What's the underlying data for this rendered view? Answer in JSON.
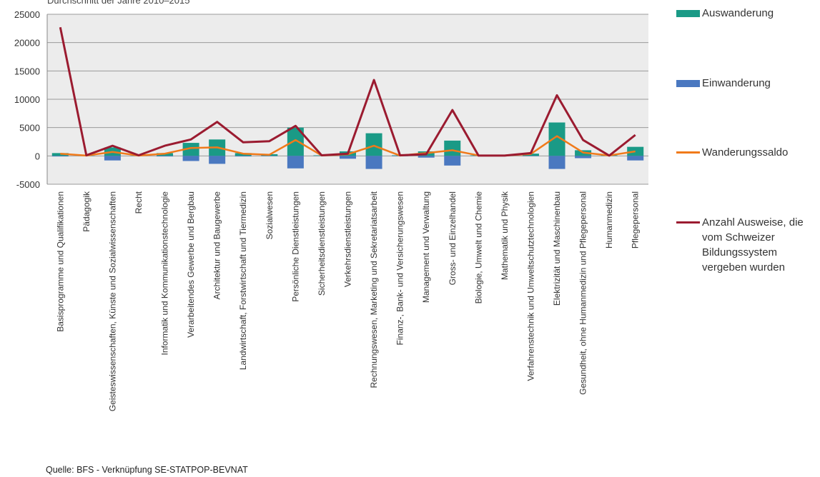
{
  "subtitle": "Durchschnitt der Jahre 2010–2015",
  "source": "Quelle: BFS - Verknüpfung SE-STATPOP-BEVNAT",
  "colors": {
    "auswanderung": "#1a9a86",
    "einwanderung": "#4a78c0",
    "wanderungssaldo": "#f07a1a",
    "ausweise": "#9b1b30",
    "plot_bg": "#ececec",
    "grid": "#9a9a9a"
  },
  "legend": [
    {
      "key": "auswanderung",
      "label": "Auswanderung",
      "kind": "box"
    },
    {
      "key": "einwanderung",
      "label": "Einwanderung",
      "kind": "box"
    },
    {
      "key": "wanderungssaldo",
      "label": "Wanderungssaldo",
      "kind": "line"
    },
    {
      "key": "ausweise",
      "label": "Anzahl Ausweise, die vom Schweizer Bildungssystem vergeben wurden",
      "kind": "line"
    }
  ],
  "chart_data": {
    "type": "bar",
    "ylim": [
      -5000,
      25000
    ],
    "yticks": [
      -5000,
      0,
      5000,
      10000,
      15000,
      20000,
      25000
    ],
    "grid": true,
    "legend_position": "right",
    "categories": [
      "Basisprogramme und Qualifikationen",
      "Pädagogik",
      "Geisteswissenschaften, Künste und Sozialwissenschaften",
      "Recht",
      "Informatik und Kommunikationstechnologie",
      "Verarbeitendes Gewerbe und Bergbau",
      "Architektur und Baugewerbe",
      "Landwirtschaft, Forstwirtschaft und Tiermedizin",
      "Sozialwesen",
      "Persönliche Dienstleistungen",
      "Sicherheitsdienstleistungen",
      "Verkehrsdienstleistungen",
      "Rechnungswesen, Marketing und Sekretariatsarbeit",
      "Finanz-, Bank- und Versicherungswesen",
      "Management und Verwaltung",
      "Gross- und Einzelhandel",
      "Biologie, Umwelt und Chemie",
      "Mathematik und Physik",
      "Verfahrenstechnik und Umweltschutztechnologien",
      "Elektrizität und Maschinenbau",
      "Gesundheit, ohne Humanmedizin und Pflegepersonal",
      "Humanmedizin",
      "Pflegepersonal"
    ],
    "series": [
      {
        "name": "Auswanderung",
        "type": "bar",
        "values": [
          500,
          50,
          1500,
          50,
          500,
          2300,
          2900,
          500,
          300,
          5000,
          100,
          800,
          4000,
          100,
          800,
          2700,
          100,
          100,
          400,
          5900,
          1000,
          100,
          1600
        ]
      },
      {
        "name": "Einwanderung",
        "type": "bar",
        "values": [
          -100,
          -20,
          -800,
          -20,
          -100,
          -900,
          -1400,
          -100,
          -50,
          -2200,
          -20,
          -500,
          -2300,
          -50,
          -300,
          -1700,
          -20,
          -20,
          -50,
          -2300,
          -400,
          -20,
          -800
        ]
      },
      {
        "name": "Wanderungssaldo",
        "type": "line",
        "values": [
          400,
          50,
          700,
          50,
          400,
          1400,
          1500,
          400,
          200,
          2800,
          80,
          300,
          1800,
          50,
          500,
          1000,
          80,
          80,
          350,
          3500,
          600,
          80,
          800
        ]
      },
      {
        "name": "Anzahl Ausweise, die vom Schweizer Bildungssystem vergeben wurden",
        "type": "line",
        "values": [
          22700,
          100,
          1800,
          100,
          1800,
          2900,
          6000,
          2400,
          2600,
          5300,
          100,
          400,
          13400,
          100,
          300,
          8100,
          50,
          50,
          500,
          10700,
          2800,
          50,
          3700
        ]
      }
    ]
  }
}
